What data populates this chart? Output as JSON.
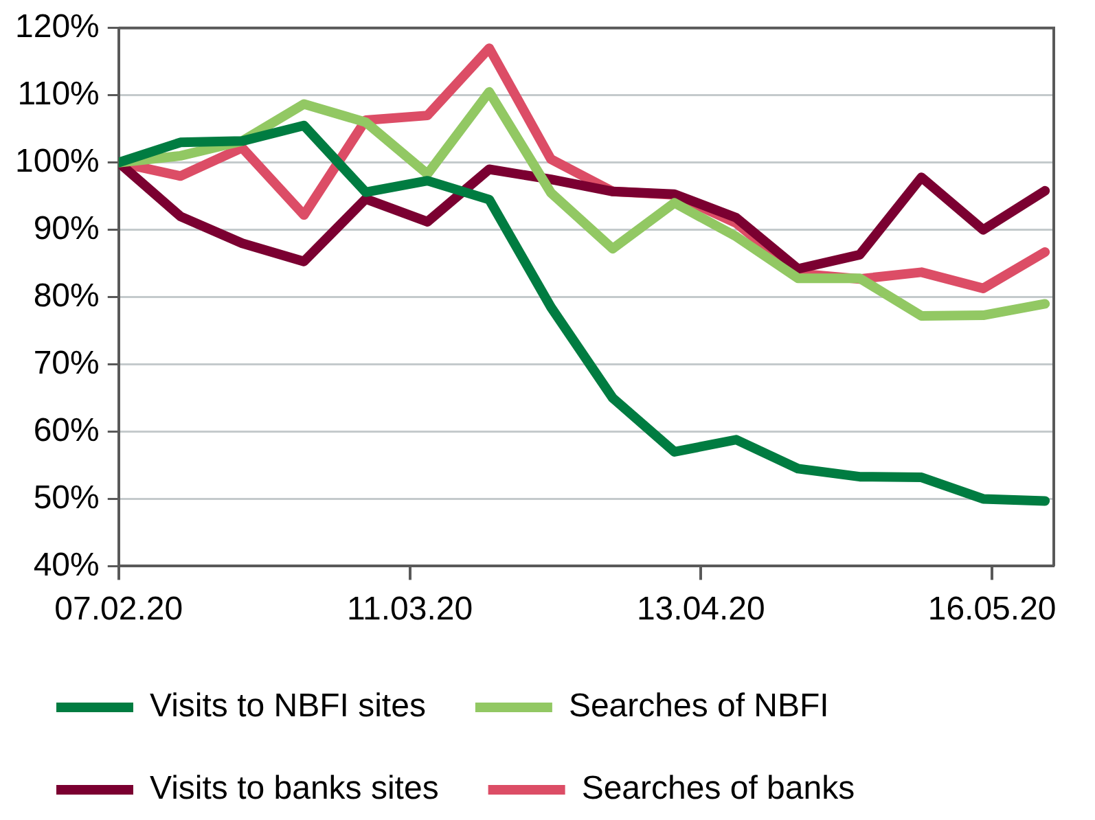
{
  "chart_data": {
    "type": "line",
    "x": [
      "2020-02-07",
      "2020-02-14",
      "2020-02-21",
      "2020-02-28",
      "2020-03-06",
      "2020-03-13",
      "2020-03-20",
      "2020-03-27",
      "2020-04-03",
      "2020-04-10",
      "2020-04-17",
      "2020-04-24",
      "2020-05-01",
      "2020-05-08",
      "2020-05-15",
      "2020-05-22"
    ],
    "series": [
      {
        "name": "Visits to NBFI sites",
        "color": "#007c41",
        "values": [
          100,
          103,
          103.2,
          105.5,
          95.6,
          97.3,
          94.5,
          78.5,
          65,
          57,
          58.8,
          54.5,
          53.3,
          53.2,
          50,
          49.7
        ]
      },
      {
        "name": "Searches of NBFI",
        "color": "#92c863",
        "values": [
          100,
          101,
          103.2,
          108.7,
          106,
          98.3,
          110.5,
          95.5,
          87.2,
          94,
          89,
          82.8,
          82.8,
          77.2,
          77.3,
          79
        ]
      },
      {
        "name": "Visits to banks sites",
        "color": "#7b0031",
        "values": [
          100,
          92,
          88,
          85.3,
          94.6,
          91.2,
          99,
          97.5,
          95.7,
          95.3,
          91.8,
          84.2,
          86.3,
          97.8,
          90,
          95.8
        ]
      },
      {
        "name": "Searches of banks",
        "color": "#dc4d66",
        "values": [
          100,
          98,
          102.2,
          92.2,
          106.3,
          107,
          117,
          100.5,
          95.7,
          95.2,
          91,
          83.5,
          82.7,
          83.7,
          81.3,
          86.7
        ]
      }
    ],
    "xlim": [
      "2020-02-07",
      "2020-05-23"
    ],
    "xticks": [
      {
        "value": "2020-02-07",
        "label": "07.02.20"
      },
      {
        "value": "2020-03-11",
        "label": "11.03.20"
      },
      {
        "value": "2020-04-13",
        "label": "13.04.20"
      },
      {
        "value": "2020-05-16",
        "label": "16.05.20"
      }
    ],
    "ylim": [
      40,
      120
    ],
    "yticks": [
      {
        "value": 40,
        "label": "40%"
      },
      {
        "value": 50,
        "label": "50%"
      },
      {
        "value": 60,
        "label": "60%"
      },
      {
        "value": 70,
        "label": "70%"
      },
      {
        "value": 80,
        "label": "80%"
      },
      {
        "value": 90,
        "label": "90%"
      },
      {
        "value": 100,
        "label": "100%"
      },
      {
        "value": 110,
        "label": "110%"
      },
      {
        "value": 120,
        "label": "120%"
      }
    ],
    "grid": "y",
    "legend": "bottom",
    "marker": "none",
    "line_style": "solid"
  }
}
